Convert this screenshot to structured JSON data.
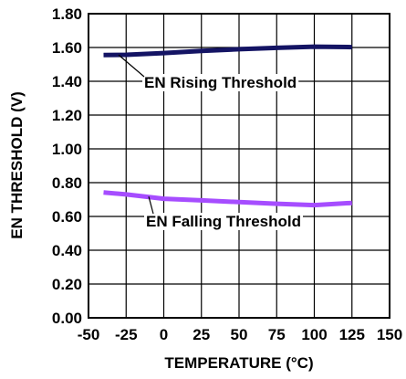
{
  "chart_data": {
    "type": "line",
    "xlabel": "TEMPERATURE (°C)",
    "ylabel": "EN THRESHOLD (V)",
    "xlim": [
      -50,
      150
    ],
    "ylim": [
      0,
      1.8
    ],
    "x_ticks": [
      "-50",
      "-25",
      "0",
      "25",
      "50",
      "75",
      "100",
      "125",
      "150"
    ],
    "y_ticks": [
      "0.00",
      "0.20",
      "0.40",
      "0.60",
      "0.80",
      "1.00",
      "1.20",
      "1.40",
      "1.60",
      "1.80"
    ],
    "grid": true,
    "series": [
      {
        "name": "EN Rising Threshold",
        "color": "#141464",
        "x": [
          -40,
          -25,
          0,
          25,
          50,
          75,
          100,
          125
        ],
        "y": [
          1.555,
          1.557,
          1.567,
          1.58,
          1.59,
          1.598,
          1.605,
          1.602
        ]
      },
      {
        "name": "EN Falling Threshold",
        "color": "#a64dff",
        "x": [
          -40,
          -25,
          0,
          25,
          50,
          75,
          100,
          125
        ],
        "y": [
          0.742,
          0.73,
          0.705,
          0.695,
          0.685,
          0.675,
          0.667,
          0.68
        ]
      }
    ]
  }
}
